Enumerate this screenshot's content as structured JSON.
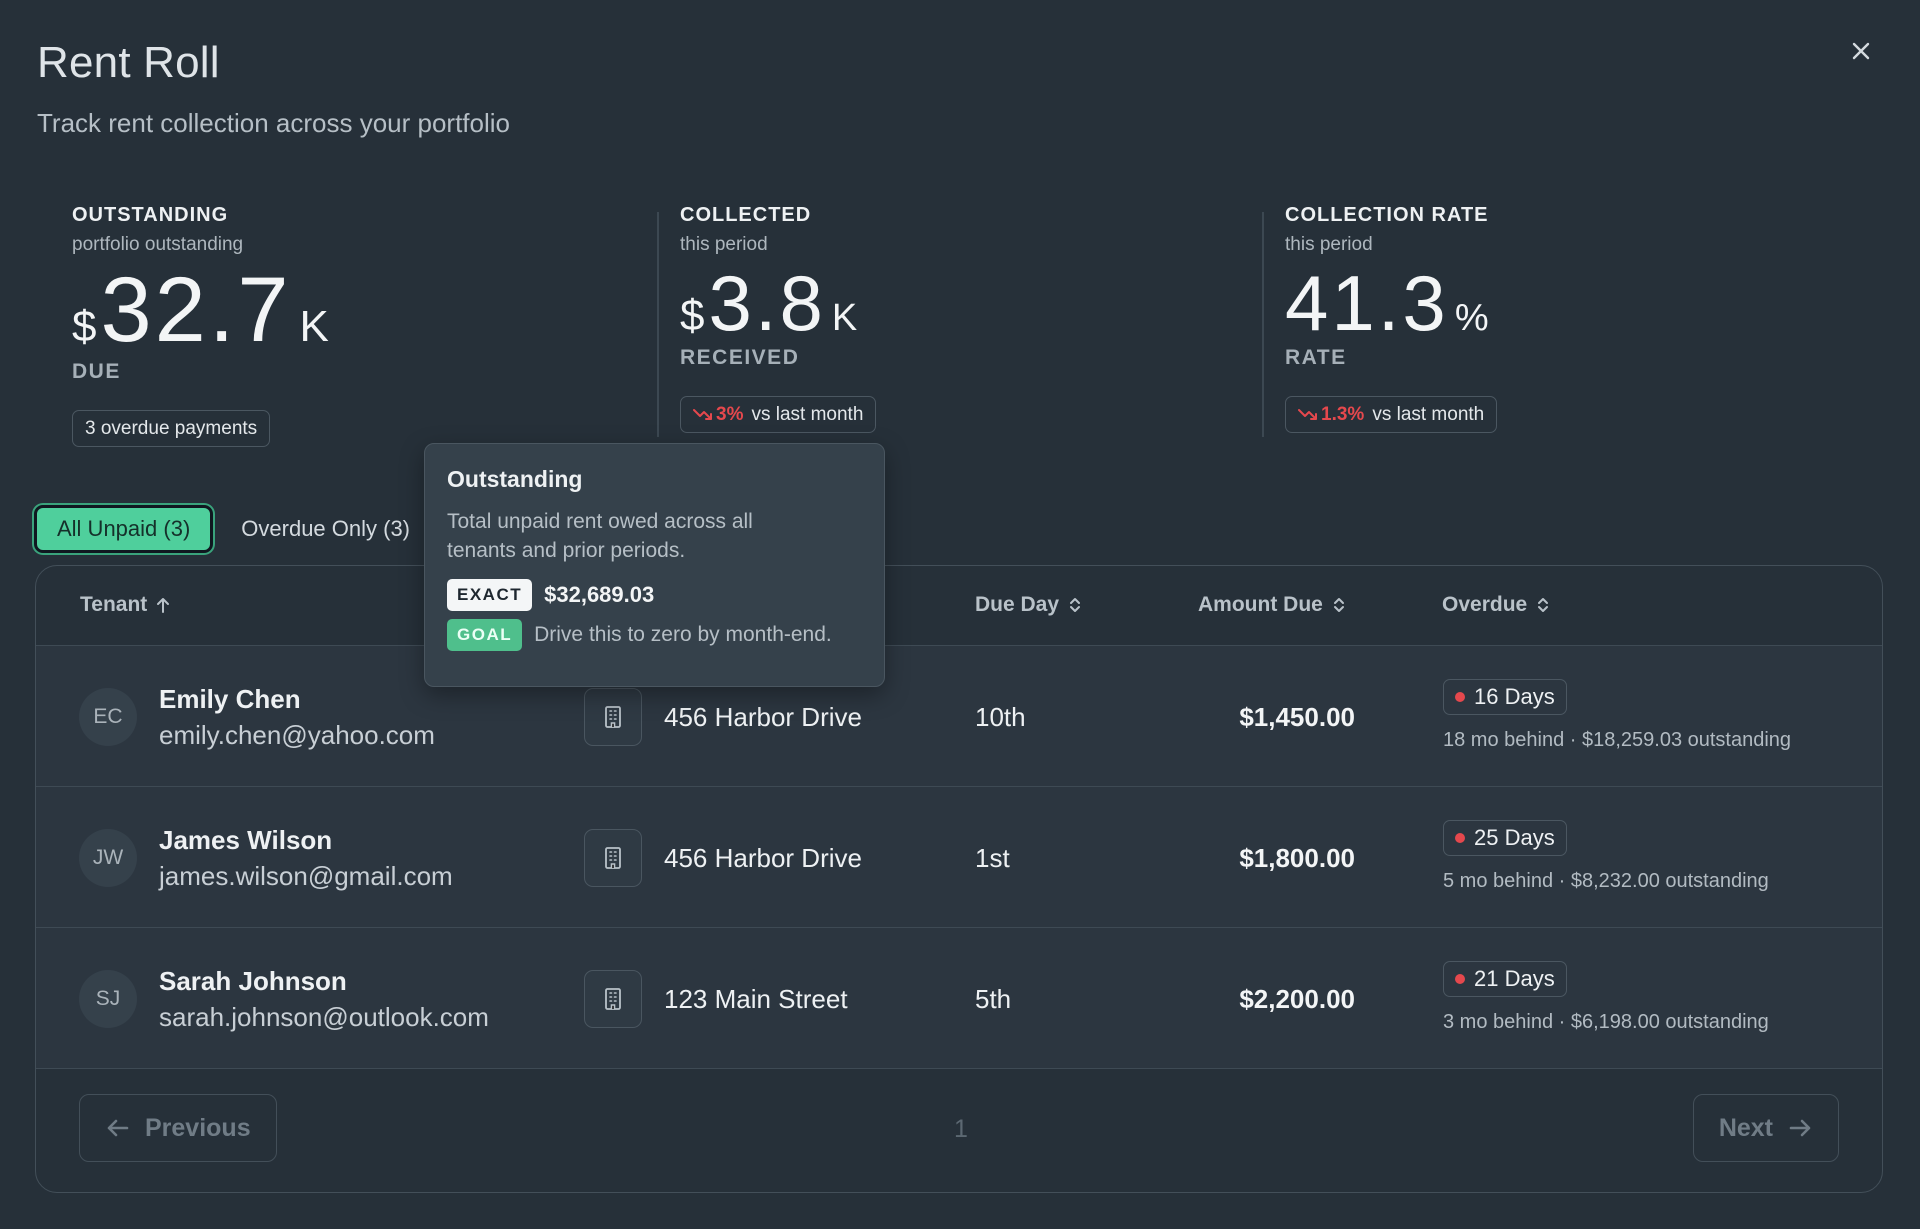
{
  "header": {
    "title": "Rent Roll",
    "subtitle": "Track rent collection across your portfolio"
  },
  "stats": [
    {
      "label": "OUTSTANDING",
      "sub": "portfolio outstanding",
      "prefix": "$",
      "value": "32.7",
      "suffix": "K",
      "unit": "DUE",
      "chip": "3 overdue payments"
    },
    {
      "label": "COLLECTED",
      "sub": "this period",
      "prefix": "$",
      "value": "3.8",
      "suffix": "K",
      "unit": "RECEIVED",
      "chip_change": "3%",
      "chip_text": "vs last month"
    },
    {
      "label": "COLLECTION RATE",
      "sub": "this period",
      "value": "41.3",
      "suffix": "%",
      "unit": "RATE",
      "chip_change": "1.3%",
      "chip_text": "vs last month"
    }
  ],
  "filters": {
    "all_unpaid": "All Unpaid (3)",
    "overdue_only": "Overdue Only (3)"
  },
  "table": {
    "columns": {
      "tenant": "Tenant",
      "due_day": "Due Day",
      "amount_due": "Amount Due",
      "overdue": "Overdue"
    },
    "rows": [
      {
        "initials": "EC",
        "name": "Emily Chen",
        "email": "emily.chen@yahoo.com",
        "property": "456 Harbor Drive",
        "due_day": "10th",
        "amount": "$1,450.00",
        "overdue_days": "16 Days",
        "behind": "18 mo behind · $18,259.03 outstanding"
      },
      {
        "initials": "JW",
        "name": "James Wilson",
        "email": "james.wilson@gmail.com",
        "property": "456 Harbor Drive",
        "due_day": "1st",
        "amount": "$1,800.00",
        "overdue_days": "25 Days",
        "behind": "5 mo behind · $8,232.00 outstanding"
      },
      {
        "initials": "SJ",
        "name": "Sarah Johnson",
        "email": "sarah.johnson@outlook.com",
        "property": "123 Main Street",
        "due_day": "5th",
        "amount": "$2,200.00",
        "overdue_days": "21 Days",
        "behind": "3 mo behind · $6,198.00 outstanding"
      }
    ]
  },
  "pagination": {
    "previous": "Previous",
    "page": "1",
    "next": "Next"
  },
  "tooltip": {
    "title": "Outstanding",
    "description": "Total unpaid rent owed across all tenants and prior periods.",
    "exact_tag": "EXACT",
    "exact_value": "$32,689.03",
    "goal_tag": "GOAL",
    "goal_text": "Drive this to zero by month-end."
  },
  "colors": {
    "background": "#263039",
    "accent_green": "#4fcf9c",
    "negative_red": "#e5484d"
  }
}
